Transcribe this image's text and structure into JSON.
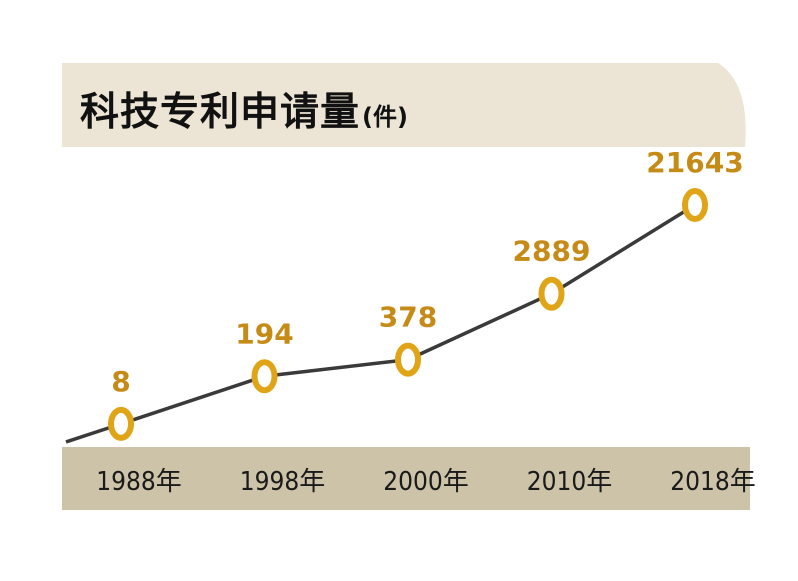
{
  "chart_data": {
    "type": "line",
    "title": "科技专利申请量",
    "unit": "(件)",
    "categories": [
      "1988年",
      "1998年",
      "2000年",
      "2010年",
      "2018年"
    ],
    "values": [
      8,
      194,
      378,
      2889,
      21643
    ],
    "data_labels": [
      "8",
      "194",
      "378",
      "2889",
      "21643"
    ],
    "xlabel": "",
    "ylabel": "",
    "grid": false,
    "legend": "none",
    "colors": {
      "line": "#3a3a3a",
      "marker": "#e0a516",
      "label": "#c68b16",
      "header_band": "#ece5d5",
      "axis_band": "#cdc3a8"
    }
  }
}
